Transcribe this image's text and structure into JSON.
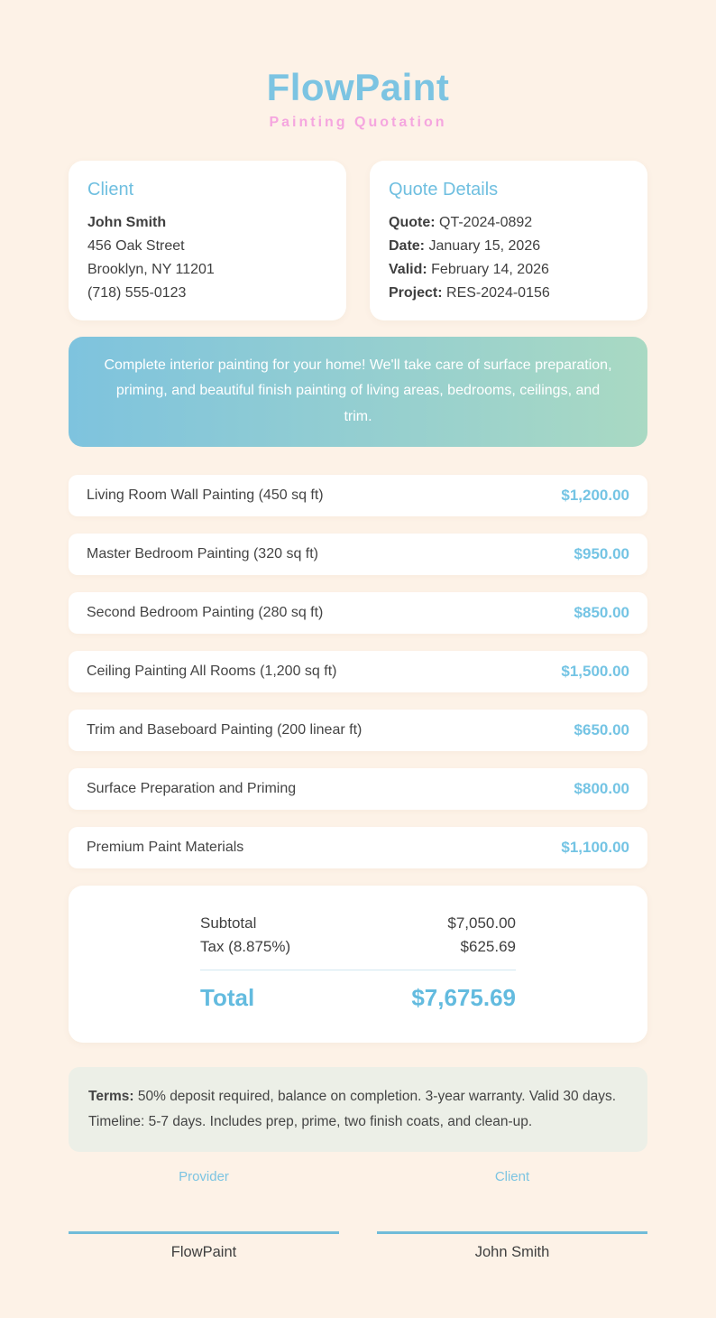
{
  "header": {
    "brand": "FlowPaint",
    "subtitle": "Painting Quotation"
  },
  "client": {
    "heading": "Client",
    "name": "John Smith",
    "address_line1": "456 Oak Street",
    "address_line2": "Brooklyn, NY 11201",
    "phone": "(718) 555-0123"
  },
  "quote": {
    "heading": "Quote Details",
    "fields": [
      {
        "label": "Quote:",
        "value": "QT-2024-0892"
      },
      {
        "label": "Date:",
        "value": "January 15, 2026"
      },
      {
        "label": "Valid:",
        "value": "February 14, 2026"
      },
      {
        "label": "Project:",
        "value": "RES-2024-0156"
      }
    ]
  },
  "description": "Complete interior painting for your home! We'll take care of surface preparation, priming, and beautiful finish painting of living areas, bedrooms, ceilings, and trim.",
  "items": [
    {
      "name": "Living Room Wall Painting (450 sq ft)",
      "price": "$1,200.00"
    },
    {
      "name": "Master Bedroom Painting (320 sq ft)",
      "price": "$950.00"
    },
    {
      "name": "Second Bedroom Painting (280 sq ft)",
      "price": "$850.00"
    },
    {
      "name": "Ceiling Painting All Rooms (1,200 sq ft)",
      "price": "$1,500.00"
    },
    {
      "name": "Trim and Baseboard Painting (200 linear ft)",
      "price": "$650.00"
    },
    {
      "name": "Surface Preparation and Priming",
      "price": "$800.00"
    },
    {
      "name": "Premium Paint Materials",
      "price": "$1,100.00"
    }
  ],
  "totals": {
    "subtotal_label": "Subtotal",
    "subtotal_value": "$7,050.00",
    "tax_label": "Tax (8.875%)",
    "tax_value": "$625.69",
    "total_label": "Total",
    "total_value": "$7,675.69"
  },
  "terms": {
    "label": "Terms:",
    "text": "50% deposit required, balance on completion. 3-year warranty. Valid 30 days. Timeline: 5-7 days. Includes prep, prime, two finish coats, and clean-up."
  },
  "signatures": [
    {
      "role": "Provider",
      "name": "FlowPaint"
    },
    {
      "role": "Client",
      "name": "John Smith"
    }
  ],
  "colors": {
    "background": "#fdf2e7",
    "accent_blue": "#74c4e4",
    "accent_pink": "#f5a6df",
    "banner_gradient_from": "#7ec3de",
    "banner_gradient_to": "#a9d9c3",
    "terms_background": "#ecefe7",
    "signature_line": "#70bcd9"
  }
}
